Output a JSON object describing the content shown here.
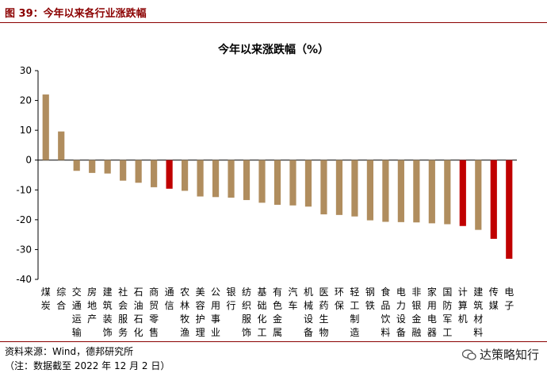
{
  "figure": {
    "label": "图 39：今年以来各行业涨跌幅",
    "source": "资料来源：Wind，德邦研究所",
    "note": "（注：数据截至 2022 年 12 月 2 日）",
    "watermark": "达策略知行"
  },
  "colors": {
    "normal": "#b08d5e",
    "highlight": "#c00000",
    "rule": "#8b0000"
  },
  "chart_data": {
    "type": "bar",
    "title": "今年以来涨跌幅（%）",
    "ylim": [
      -40,
      30
    ],
    "yticks": [
      30,
      20,
      10,
      0,
      -10,
      -20,
      -30,
      -40
    ],
    "grid": false,
    "categories": [
      "煤炭",
      "综合",
      "交通运输",
      "房地产",
      "建筑装饰",
      "社会服务",
      "石油石化",
      "商贸零售",
      "通信",
      "农林牧渔",
      "美容护理",
      "公用事业",
      "银行",
      "纺织服饰",
      "基础化工",
      "有色金属",
      "汽车",
      "机械设备",
      "医药生物",
      "环保",
      "轻工制造",
      "钢铁",
      "食品饮料",
      "电力设备",
      "非银金融",
      "家用电器",
      "国防军工",
      "计算机",
      "建筑材料",
      "传媒",
      "电子"
    ],
    "values": [
      22.0,
      9.6,
      -3.6,
      -4.3,
      -4.5,
      -6.9,
      -7.6,
      -9.1,
      -9.6,
      -10.3,
      -12.2,
      -12.4,
      -12.6,
      -13.4,
      -14.3,
      -15.0,
      -15.2,
      -15.6,
      -18.2,
      -18.4,
      -18.9,
      -20.2,
      -20.7,
      -20.8,
      -20.9,
      -21.2,
      -21.5,
      -22.1,
      -23.4,
      -26.4,
      -33.1
    ],
    "highlighted": [
      "通信",
      "计算机",
      "传媒",
      "电子"
    ]
  }
}
